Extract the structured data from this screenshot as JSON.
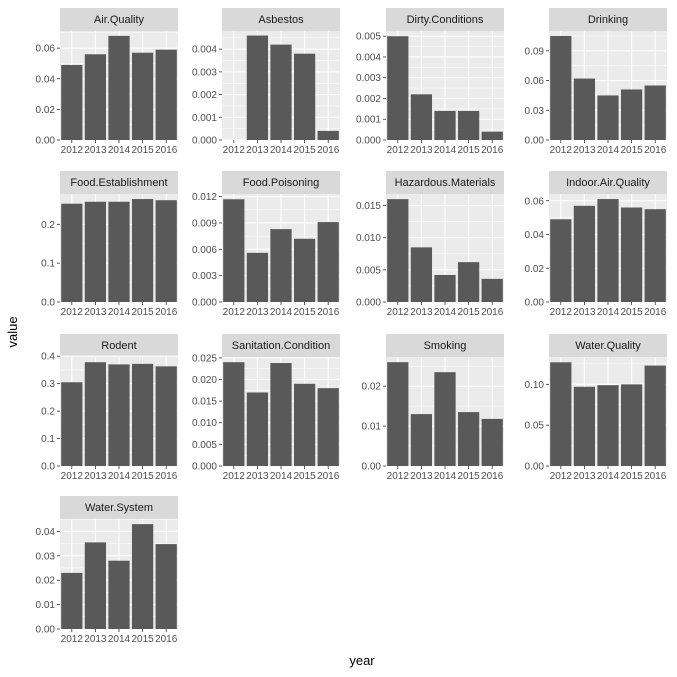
{
  "chart_data": {
    "type": "bar",
    "xlabel": "year",
    "ylabel": "value",
    "categories": [
      "2012",
      "2013",
      "2014",
      "2015",
      "2016"
    ],
    "grid": true,
    "colors": {
      "bar": "#595959",
      "panel_bg": "#ebebeb",
      "strip_bg": "#d9d9d9",
      "grid_major": "#ffffff",
      "tick_mark": "#333333",
      "tick_text": "#4d4d4d"
    },
    "panels": [
      {
        "title": "Air.Quality",
        "values": [
          0.049,
          0.056,
          0.068,
          0.057,
          0.059
        ],
        "ylim": [
          0,
          0.0712
        ],
        "yticks": [
          0.0,
          0.02,
          0.04,
          0.06
        ],
        "yticklabels": [
          "0.00",
          "0.02",
          "0.04",
          "0.06"
        ]
      },
      {
        "title": "Asbestos",
        "values": [
          0.0,
          0.0046,
          0.0042,
          0.0038,
          0.0004
        ],
        "ylim": [
          0,
          0.0048
        ],
        "yticks": [
          0.0,
          0.001,
          0.002,
          0.003,
          0.004
        ],
        "yticklabels": [
          "0.000",
          "0.001",
          "0.002",
          "0.003",
          "0.004"
        ]
      },
      {
        "title": "Dirty.Conditions",
        "values": [
          0.005,
          0.0022,
          0.0014,
          0.0014,
          0.0004
        ],
        "ylim": [
          0,
          0.00525
        ],
        "yticks": [
          0.0,
          0.001,
          0.002,
          0.003,
          0.004,
          0.005
        ],
        "yticklabels": [
          "0.000",
          "0.001",
          "0.002",
          "0.003",
          "0.004",
          "0.005"
        ]
      },
      {
        "title": "Drinking",
        "values": [
          0.105,
          0.062,
          0.045,
          0.051,
          0.055
        ],
        "ylim": [
          0,
          0.11
        ],
        "yticks": [
          0.0,
          0.03,
          0.06,
          0.09
        ],
        "yticklabels": [
          "0.00",
          "0.03",
          "0.06",
          "0.09"
        ]
      },
      {
        "title": "Food.Establishment",
        "values": [
          0.253,
          0.258,
          0.258,
          0.265,
          0.262
        ],
        "ylim": [
          0,
          0.278
        ],
        "yticks": [
          0.0,
          0.1,
          0.2
        ],
        "yticklabels": [
          "0.0",
          "0.1",
          "0.2"
        ]
      },
      {
        "title": "Food.Poisoning",
        "values": [
          0.0117,
          0.0056,
          0.0083,
          0.0072,
          0.0091
        ],
        "ylim": [
          0,
          0.0123
        ],
        "yticks": [
          0.0,
          0.003,
          0.006,
          0.009,
          0.012
        ],
        "yticklabels": [
          "0.000",
          "0.003",
          "0.006",
          "0.009",
          "0.012"
        ]
      },
      {
        "title": "Hazardous.Materials",
        "values": [
          0.016,
          0.0085,
          0.0042,
          0.0062,
          0.0036
        ],
        "ylim": [
          0,
          0.0168
        ],
        "yticks": [
          0.0,
          0.005,
          0.01,
          0.015
        ],
        "yticklabels": [
          "0.000",
          "0.005",
          "0.010",
          "0.015"
        ]
      },
      {
        "title": "Indoor.Air.Quality",
        "values": [
          0.049,
          0.057,
          0.061,
          0.056,
          0.055
        ],
        "ylim": [
          0,
          0.064
        ],
        "yticks": [
          0.0,
          0.02,
          0.04,
          0.06
        ],
        "yticklabels": [
          "0.00",
          "0.02",
          "0.04",
          "0.06"
        ]
      },
      {
        "title": "Rodent",
        "values": [
          0.305,
          0.378,
          0.37,
          0.372,
          0.363
        ],
        "ylim": [
          0,
          0.397
        ],
        "yticks": [
          0.0,
          0.1,
          0.2,
          0.3,
          0.4
        ],
        "yticklabels": [
          "0.0",
          "0.1",
          "0.2",
          "0.3",
          "0.4"
        ]
      },
      {
        "title": "Sanitation.Condition",
        "values": [
          0.024,
          0.017,
          0.0238,
          0.019,
          0.018
        ],
        "ylim": [
          0,
          0.0252
        ],
        "yticks": [
          0.0,
          0.005,
          0.01,
          0.015,
          0.02,
          0.025
        ],
        "yticklabels": [
          "0.000",
          "0.005",
          "0.010",
          "0.015",
          "0.020",
          "0.025"
        ]
      },
      {
        "title": "Smoking",
        "values": [
          0.026,
          0.013,
          0.0235,
          0.0135,
          0.0118
        ],
        "ylim": [
          0,
          0.0273
        ],
        "yticks": [
          0.0,
          0.01,
          0.02
        ],
        "yticklabels": [
          "0.00",
          "0.01",
          "0.02"
        ]
      },
      {
        "title": "Water.Quality",
        "values": [
          0.127,
          0.097,
          0.099,
          0.1,
          0.123
        ],
        "ylim": [
          0,
          0.1335
        ],
        "yticks": [
          0.0,
          0.05,
          0.1
        ],
        "yticklabels": [
          "0.00",
          "0.05",
          "0.10"
        ]
      },
      {
        "title": "Water.System",
        "values": [
          0.023,
          0.0355,
          0.028,
          0.043,
          0.0348
        ],
        "ylim": [
          0,
          0.0451
        ],
        "yticks": [
          0.0,
          0.01,
          0.02,
          0.03,
          0.04
        ],
        "yticklabels": [
          "0.00",
          "0.01",
          "0.02",
          "0.03",
          "0.04"
        ]
      }
    ]
  }
}
